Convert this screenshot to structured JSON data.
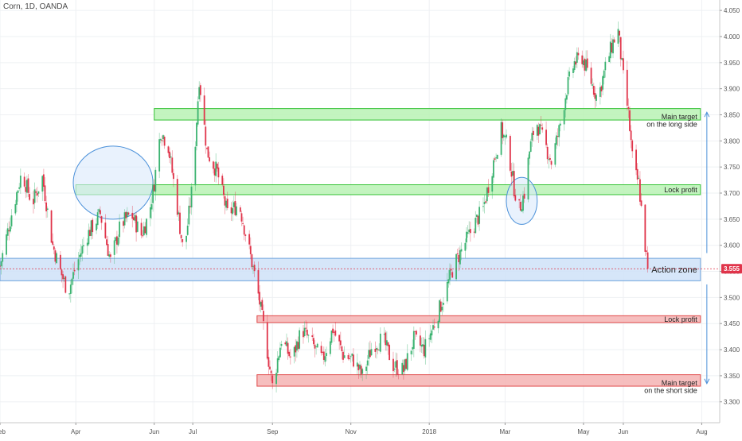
{
  "header": {
    "symbol_label": "Corn, 1D, OANDA"
  },
  "colors": {
    "up": "#3cb371",
    "down": "#e0344a",
    "grid": "#eef0f3",
    "axis_text": "#555555",
    "price_tag_bg": "#e0344a",
    "green_zone_fill": "#b9f2b4",
    "green_zone_stroke": "#35c235",
    "red_zone_fill": "#f4b3b3",
    "red_zone_stroke": "#e04b4b",
    "blue_zone_fill": "#cfe2f8",
    "blue_zone_stroke": "#6ea3dc",
    "circle_fill": "#dbe9fb",
    "circle_stroke": "#4a90d9",
    "arrow": "#4a90d9"
  },
  "chart_data": {
    "type": "candlestick",
    "title": "Corn, 1D, OANDA",
    "xlabel": "",
    "ylabel": "",
    "ylim": [
      3.26,
      4.07
    ],
    "yticks": [
      3.3,
      3.35,
      3.4,
      3.45,
      3.5,
      3.55,
      3.6,
      3.65,
      3.7,
      3.75,
      3.8,
      3.85,
      3.9,
      3.95,
      4.0,
      4.05
    ],
    "xrange": [
      "2017-02-01",
      "2018-08-15"
    ],
    "xticks": [
      {
        "date": "2017-02-01",
        "label": "Feb"
      },
      {
        "date": "2017-04-01",
        "label": "Apr"
      },
      {
        "date": "2017-06-01",
        "label": "Jun"
      },
      {
        "date": "2017-07-01",
        "label": "Jul"
      },
      {
        "date": "2017-09-01",
        "label": "Sep"
      },
      {
        "date": "2017-11-01",
        "label": "Nov"
      },
      {
        "date": "2018-01-01",
        "label": "2018"
      },
      {
        "date": "2018-03-01",
        "label": "Mar"
      },
      {
        "date": "2018-05-01",
        "label": "May"
      },
      {
        "date": "2018-06-01",
        "label": "Jun"
      },
      {
        "date": "2018-08-01",
        "label": "Aug"
      }
    ],
    "last_price": {
      "value": 3.555,
      "label": "3.555"
    },
    "price_path": [
      [
        "2017-02-01",
        3.56
      ],
      [
        "2017-02-10",
        3.66
      ],
      [
        "2017-02-18",
        3.74
      ],
      [
        "2017-02-26",
        3.68
      ],
      [
        "2017-03-06",
        3.73
      ],
      [
        "2017-03-14",
        3.6
      ],
      [
        "2017-03-20",
        3.55
      ],
      [
        "2017-03-26",
        3.51
      ],
      [
        "2017-04-01",
        3.56
      ],
      [
        "2017-04-10",
        3.62
      ],
      [
        "2017-04-20",
        3.66
      ],
      [
        "2017-04-28",
        3.57
      ],
      [
        "2017-05-06",
        3.64
      ],
      [
        "2017-05-14",
        3.66
      ],
      [
        "2017-05-22",
        3.62
      ],
      [
        "2017-05-28",
        3.66
      ],
      [
        "2017-06-01",
        3.72
      ],
      [
        "2017-06-06",
        3.82
      ],
      [
        "2017-06-12",
        3.79
      ],
      [
        "2017-06-18",
        3.69
      ],
      [
        "2017-06-24",
        3.58
      ],
      [
        "2017-07-01",
        3.72
      ],
      [
        "2017-07-06",
        3.92
      ],
      [
        "2017-07-12",
        3.78
      ],
      [
        "2017-07-20",
        3.74
      ],
      [
        "2017-07-28",
        3.66
      ],
      [
        "2017-08-06",
        3.68
      ],
      [
        "2017-08-14",
        3.59
      ],
      [
        "2017-08-20",
        3.52
      ],
      [
        "2017-08-26",
        3.43
      ],
      [
        "2017-09-01",
        3.33
      ],
      [
        "2017-09-08",
        3.42
      ],
      [
        "2017-09-16",
        3.38
      ],
      [
        "2017-09-24",
        3.44
      ],
      [
        "2017-10-02",
        3.41
      ],
      [
        "2017-10-10",
        3.38
      ],
      [
        "2017-10-18",
        3.44
      ],
      [
        "2017-10-26",
        3.39
      ],
      [
        "2017-11-03",
        3.38
      ],
      [
        "2017-11-10",
        3.35
      ],
      [
        "2017-11-18",
        3.41
      ],
      [
        "2017-11-26",
        3.42
      ],
      [
        "2017-12-04",
        3.37
      ],
      [
        "2017-12-12",
        3.36
      ],
      [
        "2017-12-20",
        3.42
      ],
      [
        "2017-12-28",
        3.4
      ],
      [
        "2018-01-05",
        3.45
      ],
      [
        "2018-01-12",
        3.5
      ],
      [
        "2018-01-20",
        3.56
      ],
      [
        "2018-01-28",
        3.6
      ],
      [
        "2018-02-05",
        3.64
      ],
      [
        "2018-02-12",
        3.67
      ],
      [
        "2018-02-20",
        3.76
      ],
      [
        "2018-02-26",
        3.82
      ],
      [
        "2018-03-03",
        3.79
      ],
      [
        "2018-03-08",
        3.71
      ],
      [
        "2018-03-12",
        3.67
      ],
      [
        "2018-03-16",
        3.7
      ],
      [
        "2018-03-20",
        3.78
      ],
      [
        "2018-03-25",
        3.84
      ],
      [
        "2018-03-31",
        3.8
      ],
      [
        "2018-04-06",
        3.76
      ],
      [
        "2018-04-12",
        3.82
      ],
      [
        "2018-04-18",
        3.9
      ],
      [
        "2018-04-24",
        3.95
      ],
      [
        "2018-04-30",
        3.96
      ],
      [
        "2018-05-06",
        3.92
      ],
      [
        "2018-05-12",
        3.88
      ],
      [
        "2018-05-18",
        3.94
      ],
      [
        "2018-05-24",
        3.99
      ],
      [
        "2018-05-28",
        4.01
      ],
      [
        "2018-06-01",
        3.92
      ],
      [
        "2018-06-05",
        3.85
      ],
      [
        "2018-06-09",
        3.74
      ],
      [
        "2018-06-13",
        3.72
      ],
      [
        "2018-06-17",
        3.62
      ],
      [
        "2018-06-20",
        3.555
      ]
    ],
    "zones": [
      {
        "name": "Main target on the long side",
        "color": "green",
        "y": [
          3.84,
          3.862
        ],
        "x": [
          "2017-06-01",
          "2018-07-31"
        ],
        "label_lines": [
          "Main target",
          "on the long side"
        ]
      },
      {
        "name": "Lock profit",
        "color": "green",
        "y": [
          3.697,
          3.716
        ],
        "x": [
          "2017-04-01",
          "2018-07-31"
        ],
        "label_lines": [
          "Lock profit"
        ]
      },
      {
        "name": "Action zone",
        "color": "blue",
        "y": [
          3.532,
          3.575
        ],
        "x": [
          "2017-02-01",
          "2018-07-31"
        ],
        "label_lines": [
          "Action zone"
        ]
      },
      {
        "name": "Lock profit",
        "color": "red",
        "y": [
          3.452,
          3.465
        ],
        "x": [
          "2017-08-20",
          "2018-07-31"
        ],
        "label_lines": [
          "Lock profit"
        ]
      },
      {
        "name": "Main target on the short side",
        "color": "red",
        "y": [
          3.33,
          3.352
        ],
        "x": [
          "2017-08-20",
          "2018-07-31"
        ],
        "label_lines": [
          "Main target",
          "on the short side"
        ]
      }
    ],
    "annotations": [
      {
        "type": "ellipse",
        "center": [
          "2017-04-30",
          3.72
        ],
        "radius_days": 31,
        "radius_price": 0.07
      },
      {
        "type": "ellipse",
        "center": [
          "2018-03-14",
          3.685
        ],
        "radius_days": 12,
        "radius_price": 0.045
      },
      {
        "type": "arrow",
        "date": "2018-08-05",
        "from": 3.585,
        "to": 3.855
      },
      {
        "type": "arrow",
        "date": "2018-08-05",
        "from": 3.525,
        "to": 3.335
      }
    ]
  }
}
